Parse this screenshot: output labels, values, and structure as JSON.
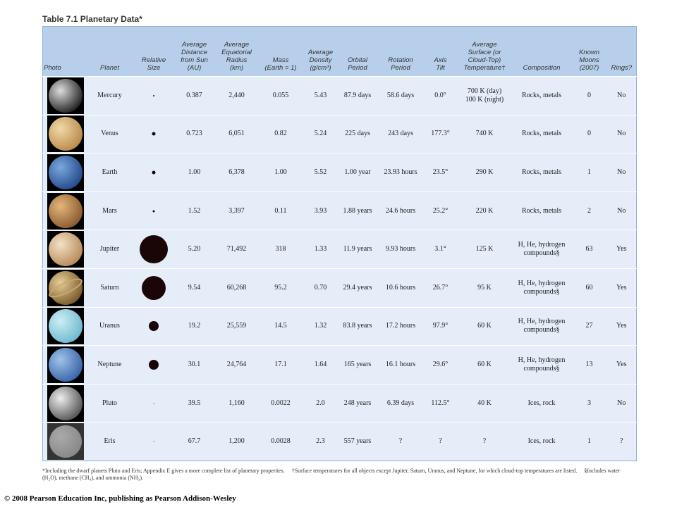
{
  "header": {
    "title": "Table 7.1  Planetary Data*"
  },
  "table": {
    "columns": [
      "Photo",
      "Planet",
      "Relative\nSize",
      "Average\nDistance\nfrom Sun\n(AU)",
      "Average\nEquatorial\nRadius\n(km)",
      "Mass\n(Earth = 1)",
      "Average\nDensity\n(g/cm³)",
      "Orbital\nPeriod",
      "Rotation\nPeriod",
      "Axis\nTilt",
      "Average\nSurface (or\nCloud-Top)\nTemperature†",
      "Composition",
      "Known\nMoons\n(2007)",
      "Rings?"
    ],
    "rows": [
      [
        "Mercury",
        "0.387",
        "2,440",
        "0.055",
        "5.43",
        "87.9 days",
        "58.6 days",
        "0.0°",
        "700 K (day)\n100 K (night)",
        "Rocks, metals",
        "0",
        "No"
      ],
      [
        "Venus",
        "0.723",
        "6,051",
        "0.82",
        "5.24",
        "225 days",
        "243 days",
        "177.3°",
        "740 K",
        "Rocks, metals",
        "0",
        "No"
      ],
      [
        "Earth",
        "1.00",
        "6,378",
        "1.00",
        "5.52",
        "1.00 year",
        "23.93 hours",
        "23.5°",
        "290 K",
        "Rocks, metals",
        "1",
        "No"
      ],
      [
        "Mars",
        "1.52",
        "3,397",
        "0.11",
        "3.93",
        "1.88 years",
        "24.6 hours",
        "25.2°",
        "220 K",
        "Rocks, metals",
        "2",
        "No"
      ],
      [
        "Jupiter",
        "5.20",
        "71,492",
        "318",
        "1.33",
        "11.9 years",
        "9.93 hours",
        "3.1°",
        "125 K",
        "H, He, hydrogen\ncompounds§",
        "63",
        "Yes"
      ],
      [
        "Saturn",
        "9.54",
        "60,268",
        "95.2",
        "0.70",
        "29.4 years",
        "10.6 hours",
        "26.7°",
        "95 K",
        "H, He, hydrogen\ncompounds§",
        "60",
        "Yes"
      ],
      [
        "Uranus",
        "19.2",
        "25,559",
        "14.5",
        "1.32",
        "83.8 years",
        "17.2 hours",
        "97.9°",
        "60 K",
        "H, He, hydrogen\ncompounds§",
        "27",
        "Yes"
      ],
      [
        "Neptune",
        "30.1",
        "24,764",
        "17.1",
        "1.64",
        "165 years",
        "16.1 hours",
        "29.6°",
        "60 K",
        "H, He, hydrogen\ncompounds§",
        "13",
        "Yes"
      ],
      [
        "Pluto",
        "39.5",
        "1,160",
        "0.0022",
        "2.0",
        "248 years",
        "6.39 days",
        "112.5°",
        "40 K",
        "Ices, rock",
        "3",
        "No"
      ],
      [
        "Eris",
        "67.7",
        "1,200",
        "0.0028",
        "2.3",
        "557 years",
        "?",
        "?",
        "?",
        "Ices, rock",
        "1",
        "?"
      ]
    ]
  },
  "footnotes": [
    "*Including the dwarf planets Pluto and Eris; Appendix E gives a more complete list of planetary properties.",
    "†Surface temperatures for all objects except Jupiter, Saturn, Uranus, and Neptune, for which cloud-top temperatures are listed.",
    "§Includes water (H₂O), methane (CH₄), and ammonia (NH₃)."
  ],
  "copyright": "© 2008 Pearson Education Inc, publishing as Pearson Addison-Wesley"
}
